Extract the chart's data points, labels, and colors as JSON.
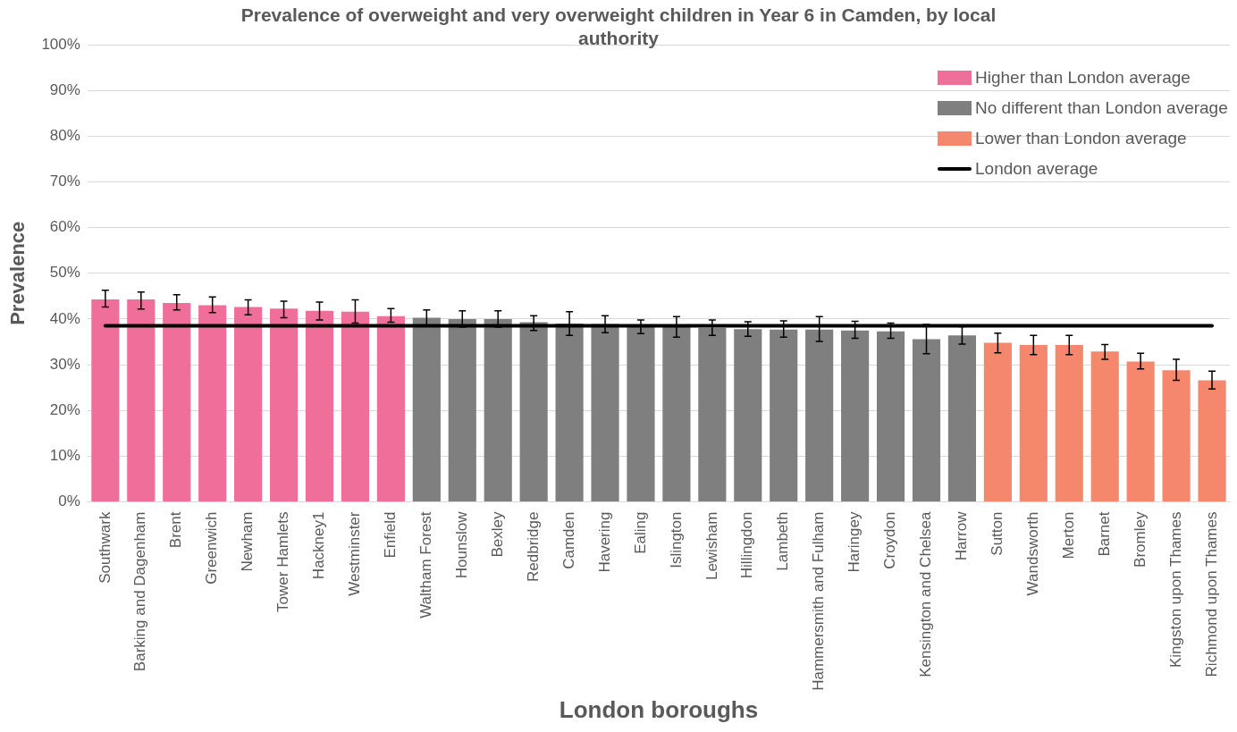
{
  "chart_data": {
    "type": "bar",
    "title": "Prevalence of overweight and very overweight children in Year 6 in Camden, by local authority",
    "xlabel": "London boroughs",
    "ylabel": "Prevalence",
    "categories": [
      "Southwark",
      "Barking and Dagenham",
      "Brent",
      "Greenwich",
      "Newham",
      "Tower Hamlets",
      "Hackney1",
      "Westminster",
      "Enfield",
      "Waltham Forest",
      "Hounslow",
      "Bexley",
      "Redbridge",
      "Camden",
      "Havering",
      "Ealing",
      "Islington",
      "Lewisham",
      "Hillingdon",
      "Lambeth",
      "Hammersmith and Fulham",
      "Haringey",
      "Croydon",
      "Kensington and Chelsea",
      "Harrow",
      "Sutton",
      "Wandsworth",
      "Merton",
      "Barnet",
      "Bromley",
      "Kingston upon Thames",
      "Richmond upon Thames"
    ],
    "series": [
      {
        "name": "Higher than London average",
        "color": "#f06e9a",
        "values": [
          44.3,
          44.3,
          43.5,
          43.0,
          42.6,
          42.3,
          41.8,
          41.6,
          40.6,
          null,
          null,
          null,
          null,
          null,
          null,
          null,
          null,
          null,
          null,
          null,
          null,
          null,
          null,
          null,
          null,
          null,
          null,
          null,
          null,
          null,
          null,
          null
        ],
        "errors": [
          [
            42.6,
            46.3
          ],
          [
            42.2,
            45.9
          ],
          [
            42.0,
            45.3
          ],
          [
            41.4,
            44.8
          ],
          [
            40.9,
            44.2
          ],
          [
            40.3,
            43.9
          ],
          [
            39.8,
            43.7
          ],
          [
            39.1,
            44.2
          ],
          [
            39.3,
            42.3
          ],
          null,
          null,
          null,
          null,
          null,
          null,
          null,
          null,
          null,
          null,
          null,
          null,
          null,
          null,
          null,
          null,
          null,
          null,
          null,
          null,
          null,
          null,
          null
        ]
      },
      {
        "name": "No different than London average",
        "color": "#7f7f7f",
        "values": [
          null,
          null,
          null,
          null,
          null,
          null,
          null,
          null,
          null,
          40.3,
          40.0,
          40.0,
          39.3,
          39.0,
          38.9,
          38.3,
          38.2,
          38.1,
          37.8,
          37.7,
          37.7,
          37.5,
          37.3,
          35.6,
          36.4,
          null,
          null,
          null,
          null,
          null,
          null,
          null
        ],
        "errors": [
          null,
          null,
          null,
          null,
          null,
          null,
          null,
          null,
          null,
          [
            38.6,
            42.0
          ],
          [
            38.2,
            41.8
          ],
          [
            38.2,
            41.8
          ],
          [
            37.5,
            40.7
          ],
          [
            36.4,
            41.6
          ],
          [
            37.0,
            40.7
          ],
          [
            36.8,
            39.8
          ],
          [
            36.0,
            40.5
          ],
          [
            36.4,
            39.8
          ],
          [
            36.2,
            39.4
          ],
          [
            36.0,
            39.6
          ],
          [
            35.1,
            40.5
          ],
          [
            35.8,
            39.5
          ],
          [
            35.8,
            39.1
          ],
          [
            32.4,
            38.8
          ],
          [
            34.5,
            38.3
          ],
          null,
          null,
          null,
          null,
          null,
          null,
          null
        ]
      },
      {
        "name": "Lower than London average",
        "color": "#f4876c",
        "values": [
          null,
          null,
          null,
          null,
          null,
          null,
          null,
          null,
          null,
          null,
          null,
          null,
          null,
          null,
          null,
          null,
          null,
          null,
          null,
          null,
          null,
          null,
          null,
          null,
          null,
          34.8,
          34.3,
          34.3,
          32.9,
          30.7,
          28.8,
          26.6
        ],
        "errors": [
          null,
          null,
          null,
          null,
          null,
          null,
          null,
          null,
          null,
          null,
          null,
          null,
          null,
          null,
          null,
          null,
          null,
          null,
          null,
          null,
          null,
          null,
          null,
          null,
          null,
          [
            32.6,
            36.9
          ],
          [
            32.2,
            36.4
          ],
          [
            32.2,
            36.4
          ],
          [
            31.2,
            34.4
          ],
          [
            29.1,
            32.5
          ],
          [
            26.6,
            31.2
          ],
          [
            24.7,
            28.6
          ]
        ]
      }
    ],
    "ref_lines": [
      {
        "axis": "y",
        "value": 38.5,
        "label": "London average",
        "color": "#000000",
        "line_style": "solid"
      }
    ],
    "ylim": [
      0,
      100
    ],
    "yticks": [
      {
        "value": 0,
        "label": "0%"
      },
      {
        "value": 10,
        "label": "10%"
      },
      {
        "value": 20,
        "label": "20%"
      },
      {
        "value": 30,
        "label": "30%"
      },
      {
        "value": 40,
        "label": "40%"
      },
      {
        "value": 50,
        "label": "50%"
      },
      {
        "value": 60,
        "label": "60%"
      },
      {
        "value": 70,
        "label": "70%"
      },
      {
        "value": 80,
        "label": "80%"
      },
      {
        "value": 90,
        "label": "90%"
      },
      {
        "value": 100,
        "label": "100%"
      }
    ],
    "grid": "y",
    "legend": "top right"
  }
}
